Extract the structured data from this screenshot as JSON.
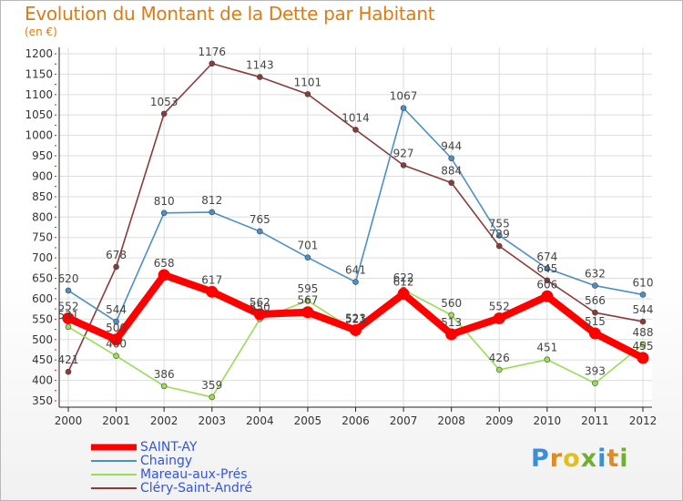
{
  "chart_data": {
    "type": "line",
    "title": "Evolution du Montant de la Dette par Habitant",
    "subtitle": "(en €)",
    "categories": [
      "2000",
      "2001",
      "2002",
      "2003",
      "2004",
      "2005",
      "2006",
      "2007",
      "2008",
      "2009",
      "2010",
      "2011",
      "2012"
    ],
    "ylim": [
      350,
      1200
    ],
    "yticks": [
      350,
      400,
      450,
      500,
      550,
      600,
      650,
      700,
      750,
      800,
      850,
      900,
      950,
      1000,
      1050,
      1100,
      1150,
      1200
    ],
    "grid": true,
    "legend_position": "bottom-left",
    "series": [
      {
        "name": "SAINT-AY",
        "color": "#ff0000",
        "values": [
          552,
          500,
          658,
          617,
          562,
          567,
          523,
          612,
          513,
          552,
          606,
          515,
          455
        ],
        "labels": [
          "552",
          "500",
          "658",
          "617",
          "562",
          "567",
          "523",
          "612",
          "513",
          "552",
          "606",
          "515",
          "455"
        ]
      },
      {
        "name": "Chaingy",
        "color": "#4a90c8",
        "values": [
          620,
          544,
          810,
          812,
          765,
          701,
          641,
          1067,
          944,
          755,
          674,
          632,
          610
        ],
        "labels": [
          "620",
          "544",
          "810",
          "812",
          "765",
          "701",
          "641",
          "1067",
          "944",
          "755",
          "674",
          "632",
          "610"
        ]
      },
      {
        "name": "Mareau-aux-Prés",
        "color": "#99dd55",
        "values": [
          531,
          460,
          386,
          359,
          550,
          595,
          521,
          622,
          560,
          426,
          451,
          393,
          488
        ],
        "labels": [
          "531",
          "460",
          "386",
          "359",
          "550",
          "595",
          "521",
          "622",
          "560",
          "426",
          "451",
          "393",
          "488"
        ]
      },
      {
        "name": "Cléry-Saint-André",
        "color": "#8b3a3a",
        "values": [
          421,
          678,
          1053,
          1176,
          1143,
          1101,
          1014,
          927,
          884,
          729,
          645,
          566,
          544
        ],
        "labels": [
          "421",
          "678",
          "1053",
          "1176",
          "1143",
          "1101",
          "1014",
          "927",
          "884",
          "729",
          "645",
          "566",
          "544"
        ]
      }
    ]
  },
  "legend": {
    "items": [
      "SAINT-AY",
      "Chaingy",
      "Mareau-aux-Prés",
      "Cléry-Saint-André"
    ]
  },
  "logo": {
    "letters": [
      "P",
      "r",
      "o",
      "x",
      "i",
      "t",
      "i"
    ],
    "colors": [
      "#3a8fd8",
      "#e08a20",
      "#e0c020",
      "#70b030",
      "#3a8fd8",
      "#e08a20",
      "#70b030"
    ]
  }
}
